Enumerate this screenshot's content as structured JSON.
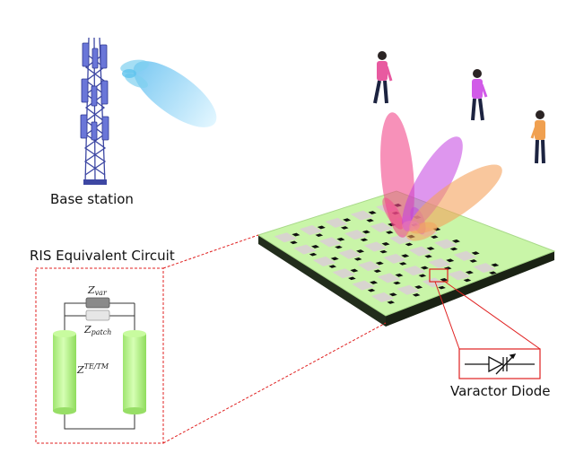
{
  "labels": {
    "base_station": "Base station",
    "ris_circuit_title": "RIS Equivalent Circuit",
    "varactor_diode": "Varactor Diode"
  },
  "circuit": {
    "z_var": {
      "base": "Z",
      "sub": "var"
    },
    "z_patch": {
      "base": "Z",
      "sub": "patch"
    },
    "z_te_tm": {
      "base": "Z",
      "sup": "TE/TM"
    }
  },
  "colors": {
    "board_green": "#c9f5a8",
    "board_edge": "#2a3a22",
    "tile_gray": "#d8d4cf",
    "tile_black": "#111111",
    "beam_blue": "#7fd0f0",
    "beam_pink": "#f2478a",
    "beam_purple": "#c23fe0",
    "beam_orange": "#f5a15c",
    "callout_red": "#e02020",
    "resistor_dark": "#8a8a8a",
    "resistor_light": "#e6e6e6",
    "cylinder_green": "#b7f58a",
    "tower_blue": "#4b58b8"
  },
  "people": [
    {
      "name": "person-pink",
      "shirt": "#e85aa0"
    },
    {
      "name": "person-purple",
      "shirt": "#d15be8"
    },
    {
      "name": "person-orange",
      "shirt": "#f0a050"
    }
  ]
}
